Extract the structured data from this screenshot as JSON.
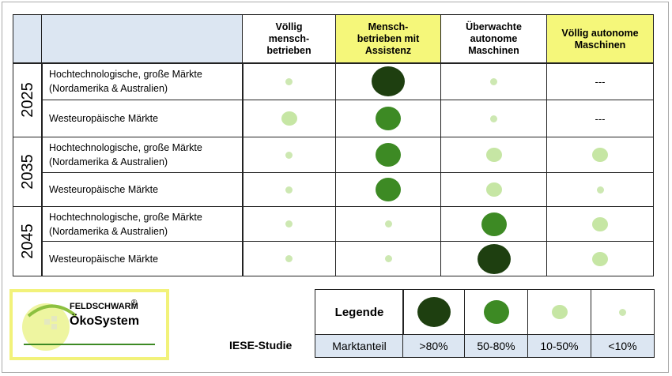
{
  "table": {
    "columns": [
      "Völlig\nmensch-\nbetrieben",
      "Mensch-\nbetrieben mit\nAssistenz",
      "Überwachte\nautonome\nMaschinen",
      "Völlig  autonome\nMaschinen"
    ],
    "groups": [
      {
        "year": "2025",
        "rows": [
          {
            "label": "Hochtechnologische,  große Märkte\n(Nordamerika  & Australien)",
            "cells": [
              "<10%",
              ">80%",
              "<10%",
              "---"
            ]
          },
          {
            "label": "Westeuropäische Märkte",
            "cells": [
              "10-50%",
              "50-80%",
              "<10%",
              "---"
            ]
          }
        ]
      },
      {
        "year": "2035",
        "rows": [
          {
            "label": "Hochtechnologische,  große Märkte\n(Nordamerika  & Australien)",
            "cells": [
              "<10%",
              "50-80%",
              "10-50%",
              "10-50%"
            ]
          },
          {
            "label": "Westeuropäische Märkte",
            "cells": [
              "<10%",
              "50-80%",
              "10-50%",
              "<10%"
            ]
          }
        ]
      },
      {
        "year": "2045",
        "rows": [
          {
            "label": "Hochtechnologische,  große Märkte\n(Nordamerika  & Australien)",
            "cells": [
              "<10%",
              "<10%",
              "50-80%",
              "10-50%"
            ]
          },
          {
            "label": "Westeuropäische Märkte",
            "cells": [
              "<10%",
              "<10%",
              ">80%",
              "10-50%"
            ]
          }
        ]
      }
    ]
  },
  "legend": {
    "title": "Legende",
    "header": "Marktanteil",
    "items": [
      {
        "label": ">80%",
        "color": "#1e3f10"
      },
      {
        "label": "50-80%",
        "color": "#3d8a24"
      },
      {
        "label": "10-50%",
        "color": "#c6e6a4"
      },
      {
        "label": "<10%",
        "color": "#cde8b2"
      }
    ]
  },
  "source": "IESE-Studie",
  "logo": {
    "brand": "FELDSCHWARM",
    "mark": "®",
    "name": "ÖkoSystem"
  }
}
